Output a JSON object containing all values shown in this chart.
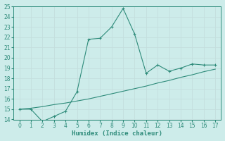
{
  "line1_x": [
    0,
    1,
    2,
    3,
    4,
    5,
    6,
    7,
    8,
    9,
    10,
    11,
    12,
    13,
    14,
    15,
    16,
    17
  ],
  "line1_y": [
    15.0,
    15.0,
    13.8,
    14.3,
    14.8,
    16.7,
    21.8,
    21.9,
    23.0,
    24.8,
    22.3,
    18.5,
    19.3,
    18.7,
    19.0,
    19.4,
    19.3,
    19.3
  ],
  "line2_x": [
    0,
    1,
    2,
    3,
    4,
    5,
    6,
    7,
    8,
    9,
    10,
    11,
    12,
    13,
    14,
    15,
    16,
    17
  ],
  "line2_y": [
    15.0,
    15.1,
    15.25,
    15.45,
    15.6,
    15.8,
    16.0,
    16.25,
    16.5,
    16.75,
    17.0,
    17.25,
    17.55,
    17.8,
    18.1,
    18.35,
    18.65,
    18.9
  ],
  "line_color": "#2e8b7a",
  "bg_color": "#cdecea",
  "grid_major_color": "#c4dedd",
  "grid_minor_color": "#daeeed",
  "xlabel": "Humidex (Indice chaleur)",
  "ylim": [
    14,
    25
  ],
  "xlim": [
    -0.5,
    17.5
  ],
  "yticks": [
    14,
    15,
    16,
    17,
    18,
    19,
    20,
    21,
    22,
    23,
    24,
    25
  ],
  "xticks": [
    0,
    1,
    2,
    3,
    4,
    5,
    6,
    7,
    8,
    9,
    10,
    11,
    12,
    13,
    14,
    15,
    16,
    17
  ],
  "tick_fontsize": 5.5,
  "xlabel_fontsize": 6.5
}
